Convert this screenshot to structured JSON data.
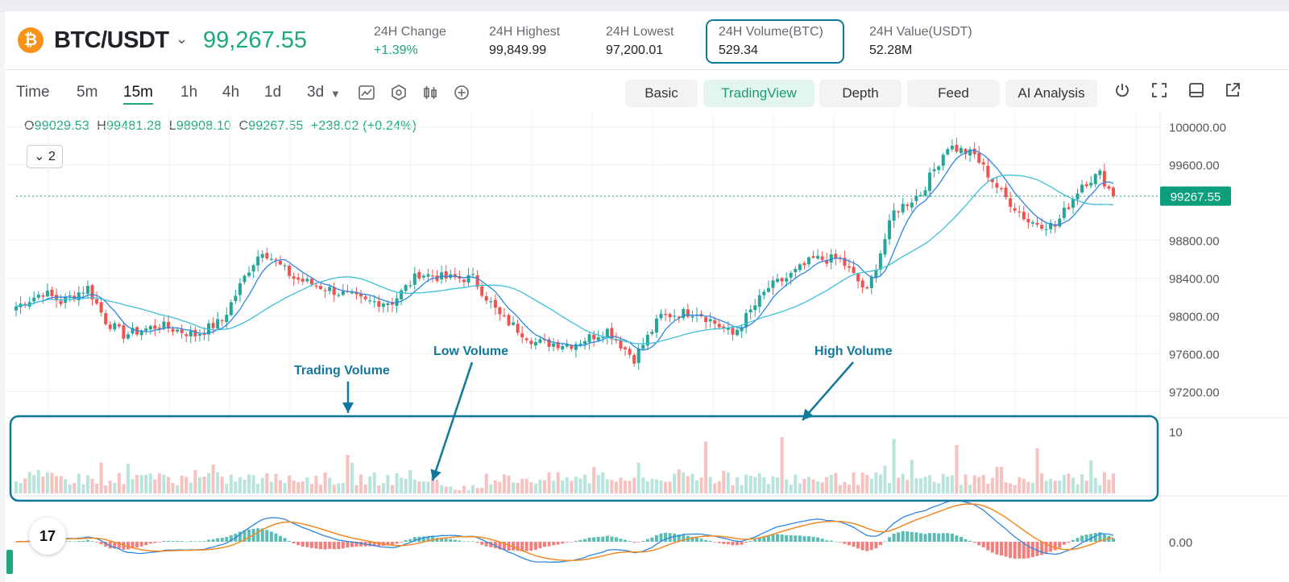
{
  "ticker": {
    "coin_symbol": "₿",
    "pair": "BTC/USDT",
    "last_price": "99,267.55",
    "stats": [
      {
        "label": "24H Change",
        "value": "+1.39%",
        "positive": true
      },
      {
        "label": "24H Highest",
        "value": "99,849.99"
      },
      {
        "label": "24H Lowest",
        "value": "97,200.01"
      },
      {
        "label": "24H Volume(BTC)",
        "value": "529.34"
      },
      {
        "label": "24H Value(USDT)",
        "value": "52.28M"
      }
    ]
  },
  "toolbar": {
    "timeframes": [
      "Time",
      "5m",
      "15m",
      "1h",
      "4h",
      "1d",
      "3d"
    ],
    "active_timeframe": "15m",
    "views": [
      "Basic",
      "TradingView",
      "Depth",
      "Feed",
      "AI Analysis"
    ],
    "active_view": "TradingView"
  },
  "ohlc": {
    "o_label": "O",
    "o": "99029.53",
    "h_label": "H",
    "h": "99481.28",
    "l_label": "L",
    "l": "98908.10",
    "c_label": "C",
    "c": "99267.55",
    "change": "+238.02 (+0.24%)"
  },
  "zoom": {
    "value": "2"
  },
  "annotations": {
    "trading_volume": "Trading Volume",
    "low_volume": "Low Volume",
    "high_volume": "High Volume"
  },
  "logo": {
    "text": "17"
  },
  "colors": {
    "up": "#26a69a",
    "down": "#ef5350",
    "accent": "#1fa77f",
    "annotation": "#10789a"
  },
  "chart_data": {
    "type": "candlestick",
    "price_ticks": [
      "100000.00",
      "99600.00",
      "98800.00",
      "98400.00",
      "98000.00",
      "97600.00",
      "97200.00"
    ],
    "price_ticks_values": [
      100000,
      99600,
      98800,
      98400,
      98000,
      97600,
      97200
    ],
    "price_range": [
      97000,
      100150
    ],
    "last_price_label": "99267.55",
    "last_price_value": 99267.55,
    "volume_tick": "10",
    "volume_tick_value": 10,
    "volume_max": 12.5,
    "macd_tick": "0.00",
    "candle_keypoints": [
      [
        0,
        98100
      ],
      [
        6,
        98250
      ],
      [
        10,
        98150
      ],
      [
        16,
        98300
      ],
      [
        20,
        97950
      ],
      [
        24,
        97800
      ],
      [
        32,
        97900
      ],
      [
        40,
        97800
      ],
      [
        46,
        97950
      ],
      [
        52,
        98500
      ],
      [
        55,
        98700
      ],
      [
        62,
        98400
      ],
      [
        70,
        98280
      ],
      [
        78,
        98150
      ],
      [
        84,
        98150
      ],
      [
        90,
        98450
      ],
      [
        96,
        98400
      ],
      [
        102,
        98400
      ],
      [
        108,
        98000
      ],
      [
        116,
        97720
      ],
      [
        124,
        97700
      ],
      [
        132,
        97850
      ],
      [
        138,
        97550
      ],
      [
        144,
        98000
      ],
      [
        152,
        98050
      ],
      [
        160,
        97800
      ],
      [
        168,
        98300
      ],
      [
        172,
        98400
      ],
      [
        178,
        98600
      ],
      [
        184,
        98600
      ],
      [
        190,
        98250
      ],
      [
        196,
        99100
      ],
      [
        202,
        99300
      ],
      [
        208,
        99800
      ],
      [
        214,
        99700
      ],
      [
        220,
        99300
      ],
      [
        226,
        99000
      ],
      [
        232,
        98950
      ],
      [
        238,
        99400
      ],
      [
        242,
        99500
      ],
      [
        245,
        99267
      ]
    ],
    "candle_count": 246,
    "volume_spikes": [
      {
        "index": 154,
        "value": 8.5
      },
      {
        "index": 171,
        "value": 9.2
      },
      {
        "index": 196,
        "value": 8.9
      },
      {
        "index": 210,
        "value": 7.9
      },
      {
        "index": 228,
        "value": 7.4
      },
      {
        "index": 240,
        "value": 5.4
      }
    ]
  }
}
